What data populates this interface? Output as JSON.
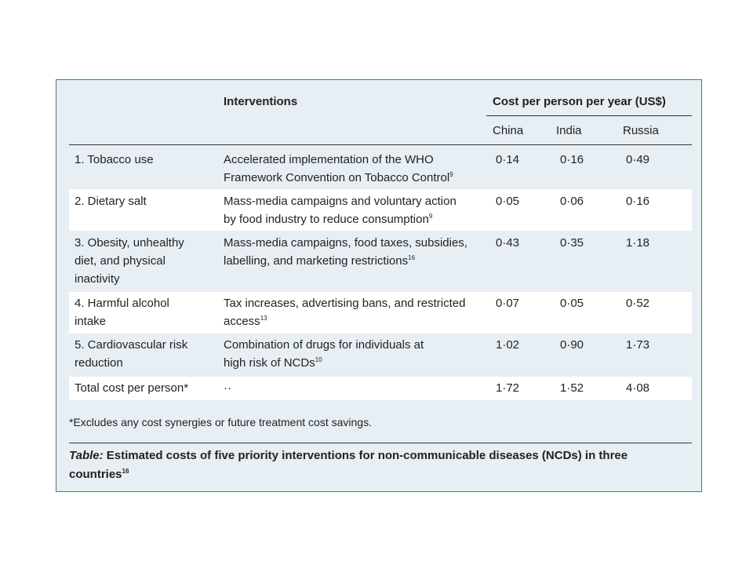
{
  "table": {
    "header": {
      "interventions": "Interventions",
      "cost_group": "Cost per person per year (US$)",
      "countries": [
        "China",
        "India",
        "Russia"
      ]
    },
    "rows": [
      {
        "risk_lines": [
          "1. Tobacco use"
        ],
        "intervention_lines": [
          "Accelerated implementation of the WHO",
          "Framework Convention on Tobacco Control"
        ],
        "ref": "9",
        "values": [
          "0·14",
          "0·16",
          "0·49"
        ]
      },
      {
        "risk_lines": [
          "2. Dietary salt"
        ],
        "intervention_lines": [
          "Mass-media campaigns and voluntary action",
          "by food industry to reduce consumption"
        ],
        "ref": "9",
        "values": [
          "0·05",
          "0·06",
          "0·16"
        ]
      },
      {
        "risk_lines": [
          "3. Obesity, unhealthy",
          "diet, and physical",
          "inactivity"
        ],
        "intervention_lines": [
          "Mass-media campaigns, food taxes, subsidies,",
          "labelling, and marketing restrictions"
        ],
        "ref": "16",
        "values": [
          "0·43",
          "0·35",
          "1·18"
        ]
      },
      {
        "risk_lines": [
          "4. Harmful alcohol",
          "intake"
        ],
        "intervention_lines": [
          "Tax increases, advertising bans, and restricted",
          "access"
        ],
        "ref": "13",
        "values": [
          "0·07",
          "0·05",
          "0·52"
        ]
      },
      {
        "risk_lines": [
          "5. Cardiovascular risk",
          "reduction"
        ],
        "intervention_lines": [
          "Combination of drugs for individuals at",
          "high risk of NCDs"
        ],
        "ref": "10",
        "values": [
          "1·02",
          "0·90",
          "1·73"
        ]
      },
      {
        "risk_lines": [
          "Total cost per person*"
        ],
        "intervention_lines": [
          "··"
        ],
        "ref": "",
        "values": [
          "1·72",
          "1·52",
          "4·08"
        ]
      }
    ],
    "footnote": "*Excludes any cost synergies or future treatment cost savings.",
    "caption": {
      "label": "Table:",
      "text": "Estimated costs of five priority interventions for non-communicable diseases (NCDs) in three countries",
      "ref": "16"
    }
  }
}
